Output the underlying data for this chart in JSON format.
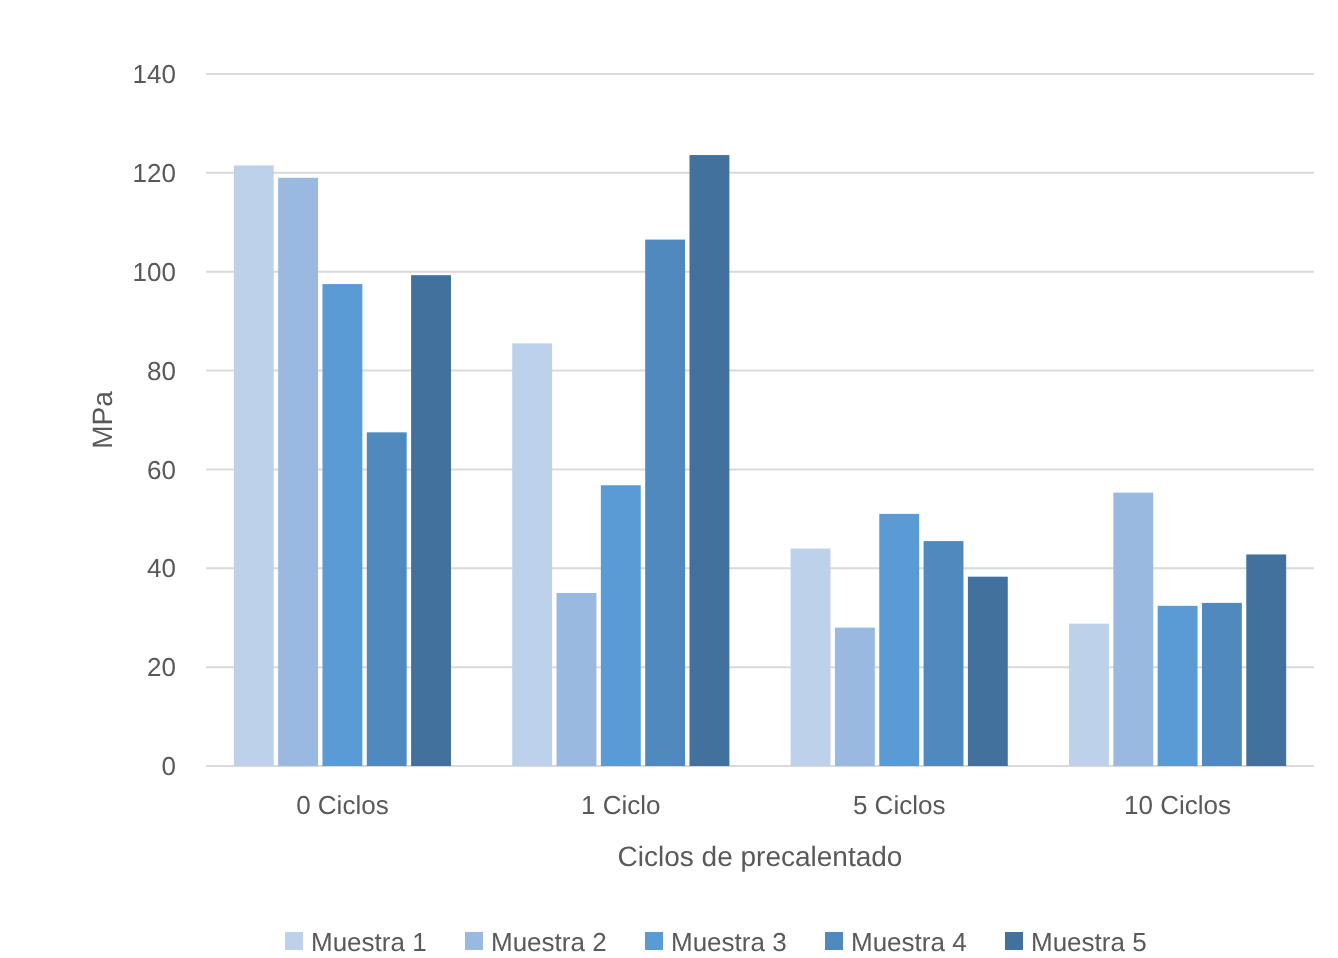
{
  "chart_data": {
    "type": "bar",
    "xlabel": "Ciclos de precalentado",
    "ylabel": "MPa",
    "categories": [
      "0 Ciclos",
      "1 Ciclo",
      "5 Ciclos",
      "10 Ciclos"
    ],
    "series": [
      {
        "name": "Muestra 1",
        "color": "#bdd1ea",
        "values": [
          121.5,
          85.5,
          44,
          28.8
        ]
      },
      {
        "name": "Muestra 2",
        "color": "#9ab9e0",
        "values": [
          119,
          35,
          28,
          55.3
        ]
      },
      {
        "name": "Muestra 3",
        "color": "#5b9bd5",
        "values": [
          97.5,
          56.8,
          51,
          32.4
        ]
      },
      {
        "name": "Muestra 4",
        "color": "#4f89bd",
        "values": [
          67.5,
          106.5,
          45.5,
          33
        ]
      },
      {
        "name": "Muestra 5",
        "color": "#41719c",
        "values": [
          99.3,
          123.6,
          38.3,
          42.8
        ]
      }
    ],
    "ylim": [
      0,
      140
    ],
    "yticks": [
      0,
      20,
      40,
      60,
      80,
      100,
      120,
      140
    ],
    "grid": "y",
    "legend": "bottom"
  }
}
